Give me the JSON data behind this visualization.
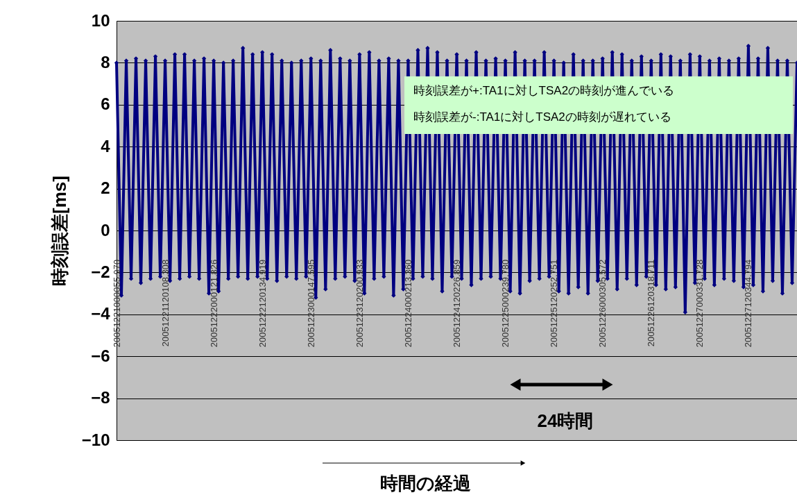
{
  "chart_data": {
    "type": "line",
    "xlabel": "時間の経過",
    "ylabel": "時刻誤差[ms]",
    "categories": [
      "20051221000055.970",
      null,
      null,
      null,
      null,
      null,
      null,
      null,
      null,
      null,
      "20051221120108.308",
      null,
      null,
      null,
      null,
      null,
      null,
      null,
      null,
      null,
      "20051222000121.826",
      null,
      null,
      null,
      null,
      null,
      null,
      null,
      null,
      null,
      "20051222120134.919",
      null,
      null,
      null,
      null,
      null,
      null,
      null,
      null,
      null,
      "20051223000147.595",
      null,
      null,
      null,
      null,
      null,
      null,
      null,
      null,
      null,
      "20051223120200.933",
      null,
      null,
      null,
      null,
      null,
      null,
      null,
      null,
      null,
      "20051224000213.360",
      null,
      null,
      null,
      null,
      null,
      null,
      null,
      null,
      null,
      "20051224120226.859",
      null,
      null,
      null,
      null,
      null,
      null,
      null,
      null,
      null,
      "20051225000239.780",
      null,
      null,
      null,
      null,
      null,
      null,
      null,
      null,
      null,
      "20051225120252.751",
      null,
      null,
      null,
      null,
      null,
      null,
      null,
      null,
      null,
      "20051226000305.572",
      null,
      null,
      null,
      null,
      null,
      null,
      null,
      null,
      null,
      "20051226120318.711",
      null,
      null,
      null,
      null,
      null,
      null,
      null,
      null,
      null,
      "20051227000331.728",
      null,
      null,
      null,
      null,
      null,
      null,
      null,
      null,
      null,
      "20051227120344.794",
      null,
      null,
      null,
      null,
      null,
      null,
      null,
      null,
      null,
      null
    ],
    "series": [
      {
        "color": "#000080",
        "values": [
          8.0,
          -3.1,
          8.1,
          -2.3,
          8.2,
          -2.5,
          8.1,
          -2.3,
          8.3,
          -2.2,
          8.1,
          -2.4,
          8.4,
          -2.3,
          8.4,
          -2.2,
          8.1,
          -2.3,
          8.2,
          -3.0,
          8.1,
          -2.9,
          8.0,
          -2.3,
          8.1,
          -2.2,
          8.7,
          -2.3,
          8.4,
          -2.2,
          8.5,
          -2.3,
          8.4,
          -2.4,
          8.1,
          -2.2,
          8.0,
          -2.3,
          8.1,
          -2.2,
          8.2,
          -3.2,
          8.1,
          -2.8,
          8.6,
          -2.3,
          8.2,
          -2.2,
          8.1,
          -2.4,
          8.4,
          -3.0,
          8.5,
          -2.3,
          8.1,
          -2.2,
          8.2,
          -3.1,
          8.1,
          -2.8,
          8.1,
          -2.3,
          8.6,
          -2.2,
          8.7,
          -2.3,
          8.5,
          -2.9,
          8.1,
          -2.2,
          8.4,
          -2.3,
          8.1,
          -2.6,
          8.5,
          -2.3,
          8.1,
          -2.2,
          8.2,
          -2.3,
          8.1,
          -2.9,
          8.5,
          -3.0,
          8.1,
          -2.4,
          8.1,
          -2.3,
          8.5,
          -2.2,
          8.1,
          -2.9,
          8.0,
          -3.0,
          8.4,
          -2.7,
          8.1,
          -3.0,
          8.1,
          -2.4,
          8.2,
          -2.3,
          8.5,
          -2.8,
          8.4,
          -2.3,
          8.1,
          -2.6,
          8.3,
          -2.2,
          8.1,
          -2.6,
          8.4,
          -2.8,
          8.3,
          -2.7,
          8.1,
          -3.9,
          8.4,
          -2.5,
          8.3,
          -2.3,
          8.1,
          -2.6,
          8.2,
          -2.3,
          8.1,
          -2.4,
          8.2,
          -2.7,
          8.8,
          -2.6,
          8.2,
          -2.9,
          8.7,
          -2.4,
          8.1,
          -3.0,
          8.1,
          -2.5,
          8.0
        ]
      }
    ],
    "ylim": [
      -10,
      10
    ],
    "yticks": [
      -10,
      -8,
      -6,
      -4,
      -2,
      0,
      2,
      4,
      6,
      8,
      10
    ],
    "grid": "y",
    "marker": "diamond",
    "line_style": "solid",
    "annotations": [
      "時刻誤差が+:TA1に対しTSA2の時刻が進んでいる",
      "時刻誤差が-:TA1に対しTSA2の時刻が遅れている",
      "24時間"
    ]
  }
}
